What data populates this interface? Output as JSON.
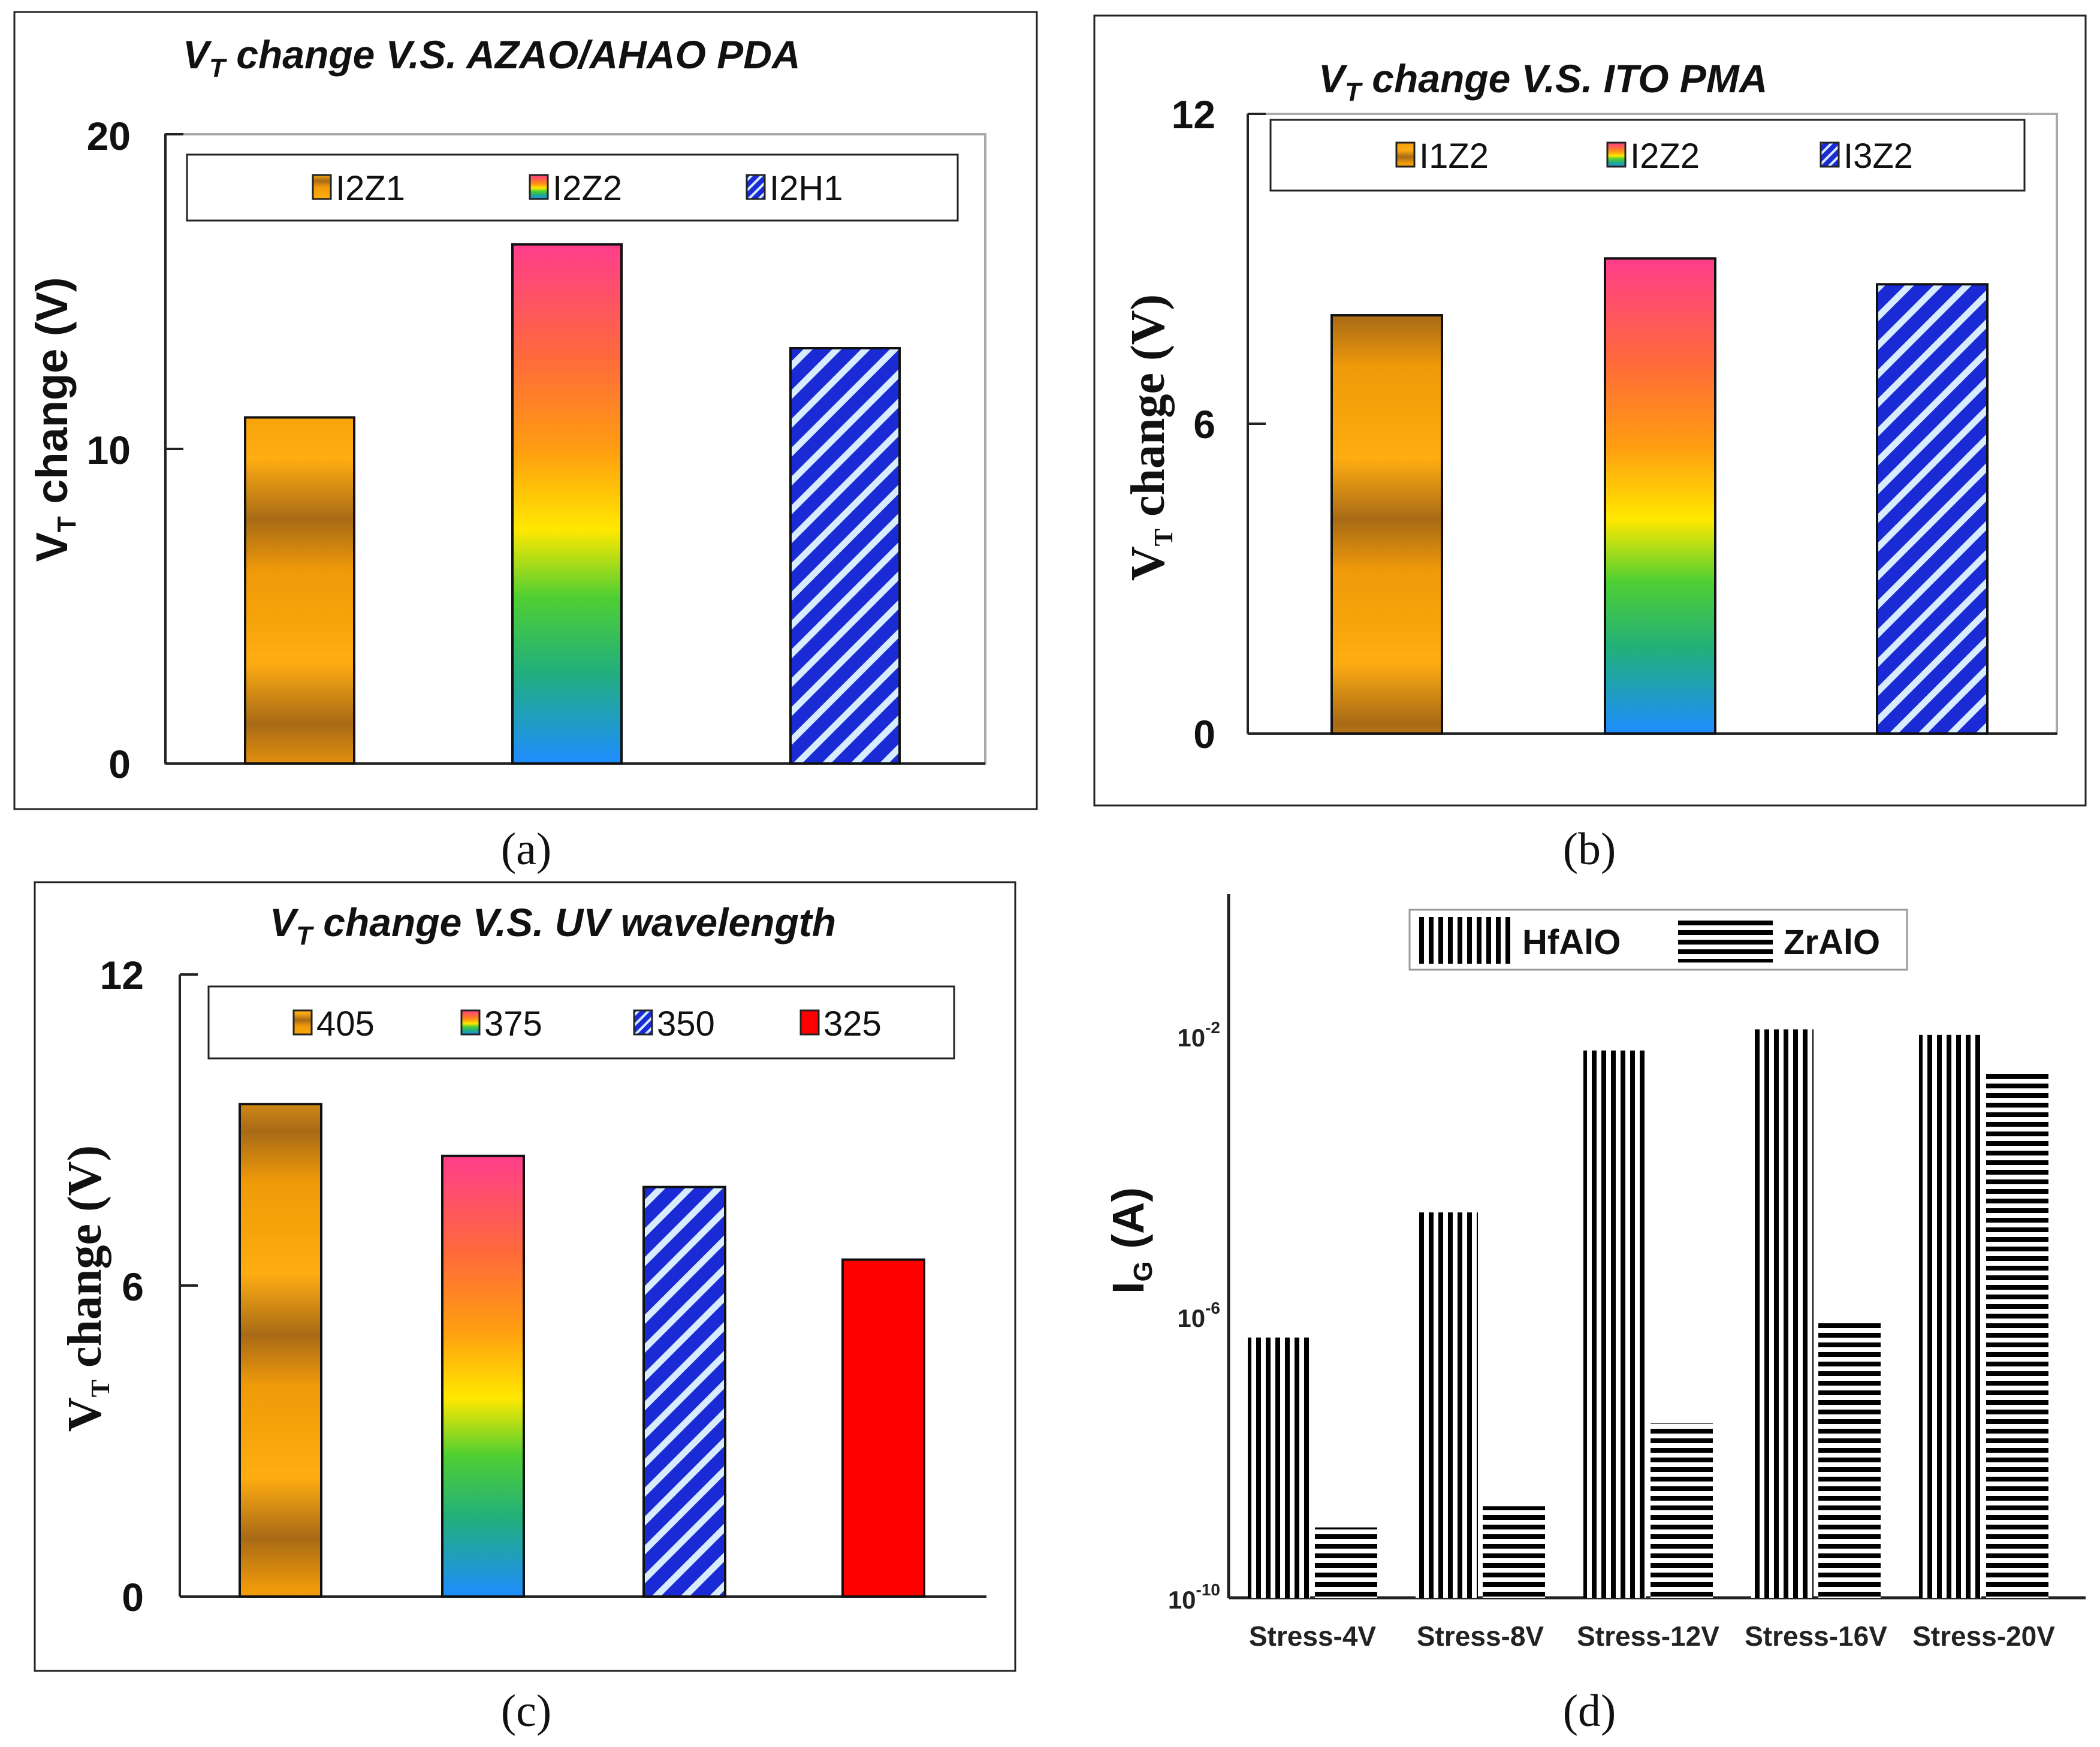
{
  "chart_data": [
    {
      "id": "a",
      "type": "bar",
      "title": "VT change V.S. AZAO/AHAO PDA",
      "title_main": "V",
      "title_sub": "T",
      "title_rest": " change V.S. AZAO/AHAO PDA",
      "ylabel_main": "V",
      "ylabel_sub": "T",
      "ylabel_rest": " change (V)",
      "ylim": [
        0,
        20
      ],
      "yticks": [
        "0",
        "10",
        "20"
      ],
      "categories": [
        "I2Z1",
        "I2Z2",
        "I2H1"
      ],
      "values": [
        11,
        16.5,
        13.2
      ],
      "legend": [
        "I2Z1",
        "I2Z2",
        "I2H1"
      ],
      "caption": "(a)"
    },
    {
      "id": "b",
      "type": "bar",
      "title": "VT change V.S. ITO PMA",
      "title_main": "V",
      "title_sub": "T",
      "title_rest": " change V.S. ITO PMA",
      "ylabel_main": "V",
      "ylabel_sub": "T",
      "ylabel_rest": " change (V)",
      "ylim": [
        0,
        12
      ],
      "yticks": [
        "0",
        "6",
        "12"
      ],
      "categories": [
        "I1Z2",
        "I2Z2",
        "I3Z2"
      ],
      "values": [
        8.1,
        9.2,
        8.7
      ],
      "legend": [
        "I1Z2",
        "I2Z2",
        "I3Z2"
      ],
      "caption": "(b)"
    },
    {
      "id": "c",
      "type": "bar",
      "title": "VT change V.S. UV wavelength",
      "title_main": "V",
      "title_sub": "T",
      "title_rest": " change V.S. UV wavelength",
      "ylabel_main": "V",
      "ylabel_sub": "T",
      "ylabel_rest": " change (V)",
      "ylim": [
        0,
        12
      ],
      "yticks": [
        "0",
        "6",
        "12"
      ],
      "categories": [
        "405",
        "375",
        "350",
        "325"
      ],
      "values": [
        9.5,
        8.5,
        7.9,
        6.5
      ],
      "legend": [
        "405",
        "375",
        "350",
        "325"
      ],
      "caption": "(c)"
    },
    {
      "id": "d",
      "type": "bar",
      "yscale": "log",
      "ylabel_main": "I",
      "ylabel_sub": "G",
      "ylabel_rest": " (A)",
      "ylim_exp": [
        -10,
        0
      ],
      "yticks": [
        {
          "base": "10",
          "exp": "-10"
        },
        {
          "base": "10",
          "exp": "-6"
        },
        {
          "base": "10",
          "exp": "-2"
        }
      ],
      "categories": [
        "Stress-4V",
        "Stress-8V",
        "Stress-12V",
        "Stress-16V",
        "Stress-20V"
      ],
      "series": [
        {
          "name": "HfAlO",
          "values": [
            5e-07,
            3e-05,
            0.006,
            0.012,
            0.01
          ]
        },
        {
          "name": "ZrAlO",
          "values": [
            1e-09,
            2e-09,
            3e-08,
            8e-07,
            0.003
          ]
        }
      ],
      "legend": [
        "HfAlO",
        "ZrAlO"
      ],
      "caption": "(d)"
    }
  ]
}
